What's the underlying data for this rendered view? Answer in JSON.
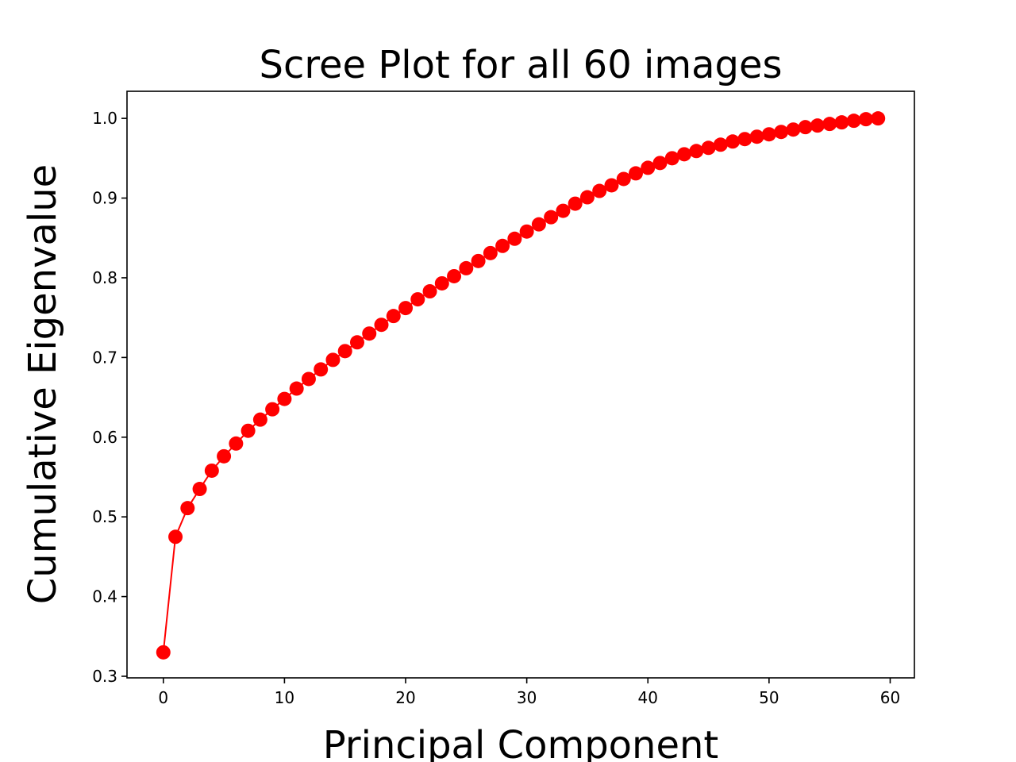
{
  "chart_data": {
    "type": "line",
    "title": "Scree Plot for all 60 images",
    "xlabel": "Principal Component",
    "ylabel": "Cumulative Eigenvalue",
    "xlim": [
      -3,
      62
    ],
    "ylim": [
      0.298,
      1.034
    ],
    "xticks": [
      0,
      10,
      20,
      30,
      40,
      50,
      60
    ],
    "yticks": [
      0.3,
      0.4,
      0.5,
      0.6,
      0.7,
      0.8,
      0.9,
      1.0
    ],
    "xtick_labels": [
      "0",
      "10",
      "20",
      "30",
      "40",
      "50",
      "60"
    ],
    "ytick_labels": [
      "0.3",
      "0.4",
      "0.5",
      "0.6",
      "0.7",
      "0.8",
      "0.9",
      "1.0"
    ],
    "grid": false,
    "legend": false,
    "series": [
      {
        "color": "#ff0000",
        "marker": "circle",
        "x": [
          0,
          1,
          2,
          3,
          4,
          5,
          6,
          7,
          8,
          9,
          10,
          11,
          12,
          13,
          14,
          15,
          16,
          17,
          18,
          19,
          20,
          21,
          22,
          23,
          24,
          25,
          26,
          27,
          28,
          29,
          30,
          31,
          32,
          33,
          34,
          35,
          36,
          37,
          38,
          39,
          40,
          41,
          42,
          43,
          44,
          45,
          46,
          47,
          48,
          49,
          50,
          51,
          52,
          53,
          54,
          55,
          56,
          57,
          58,
          59
        ],
        "values": [
          0.33,
          0.475,
          0.511,
          0.535,
          0.558,
          0.576,
          0.592,
          0.608,
          0.622,
          0.635,
          0.648,
          0.661,
          0.673,
          0.685,
          0.697,
          0.708,
          0.719,
          0.73,
          0.741,
          0.752,
          0.762,
          0.773,
          0.783,
          0.793,
          0.802,
          0.812,
          0.821,
          0.831,
          0.84,
          0.849,
          0.858,
          0.867,
          0.876,
          0.884,
          0.893,
          0.901,
          0.909,
          0.916,
          0.924,
          0.931,
          0.938,
          0.944,
          0.95,
          0.955,
          0.959,
          0.963,
          0.967,
          0.971,
          0.974,
          0.977,
          0.98,
          0.983,
          0.986,
          0.989,
          0.991,
          0.993,
          0.995,
          0.997,
          0.999,
          1.0
        ]
      }
    ]
  }
}
